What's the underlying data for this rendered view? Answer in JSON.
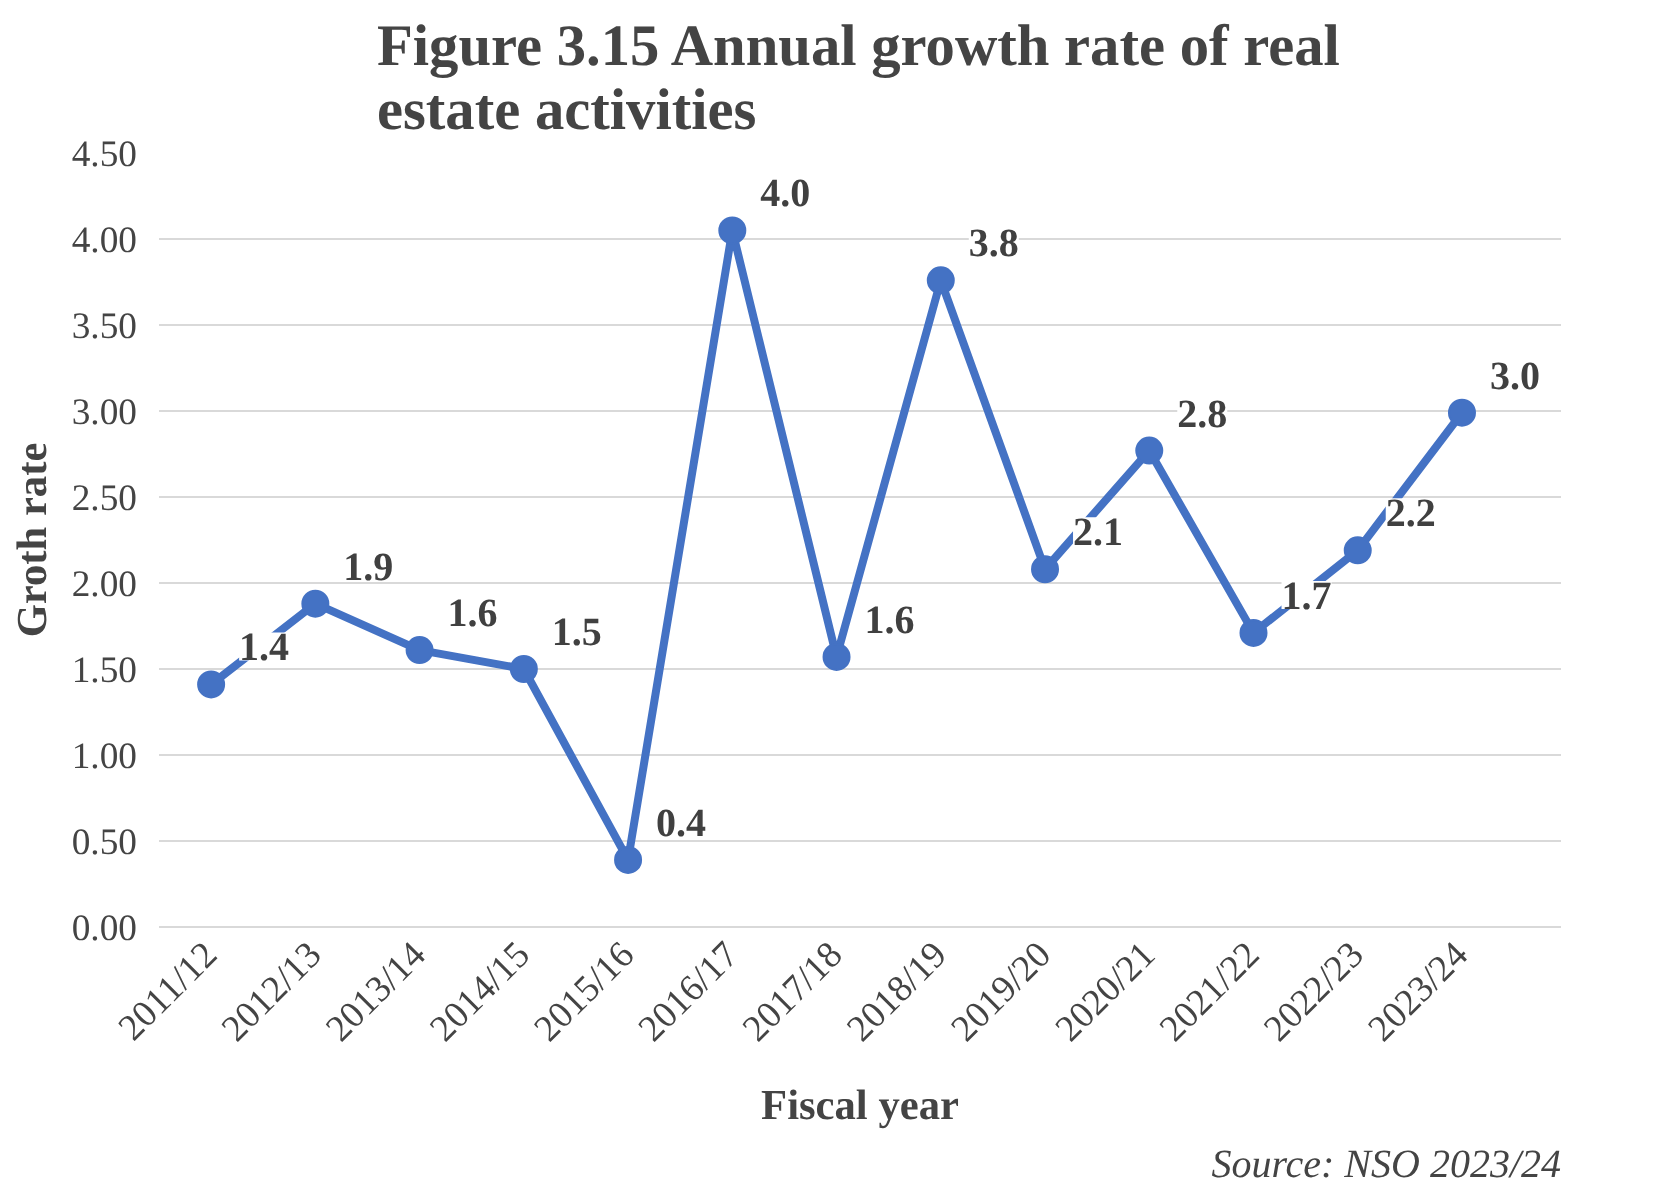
{
  "chart_data": {
    "type": "line",
    "title": "Figure 3.15 Annual growth rate of real estate activities",
    "xlabel": "Fiscal year",
    "ylabel": "Groth rate",
    "categories": [
      "2011/12",
      "2012/13",
      "2013/14",
      "2014/15",
      "2015/16",
      "2016/17",
      "2017/18",
      "2018/19",
      "2019/20",
      "2020/21",
      "2021/22",
      "2022/23",
      "2023/24"
    ],
    "series": [
      {
        "color": "#4472c4",
        "values": [
          1.41,
          1.88,
          1.61,
          1.5,
          0.39,
          4.05,
          1.57,
          3.76,
          2.08,
          2.77,
          1.71,
          2.19,
          2.99
        ],
        "value_labels": [
          "1.4",
          "1.9",
          "1.6",
          "1.5",
          "0.4",
          "4.0",
          "1.6",
          "3.8",
          "2.1",
          "2.8",
          "1.7",
          "2.2",
          "3.0"
        ]
      }
    ],
    "ylim": [
      0,
      4.5
    ],
    "yticks": [
      {
        "value": 0,
        "label": "0.00"
      },
      {
        "value": 0.5,
        "label": "0.50"
      },
      {
        "value": 1,
        "label": "1.00"
      },
      {
        "value": 1.5,
        "label": "1.50"
      },
      {
        "value": 2,
        "label": "2.00"
      },
      {
        "value": 2.5,
        "label": "2.50"
      },
      {
        "value": 3,
        "label": "3.00"
      },
      {
        "value": 3.5,
        "label": "3.50"
      },
      {
        "value": 4,
        "label": "4.00"
      },
      {
        "value": 4.5,
        "label": "4.50"
      }
    ],
    "grid": "y",
    "marker": "circle",
    "line_style": "solid",
    "annotations": [
      "Source: NSO 2023/24"
    ]
  }
}
